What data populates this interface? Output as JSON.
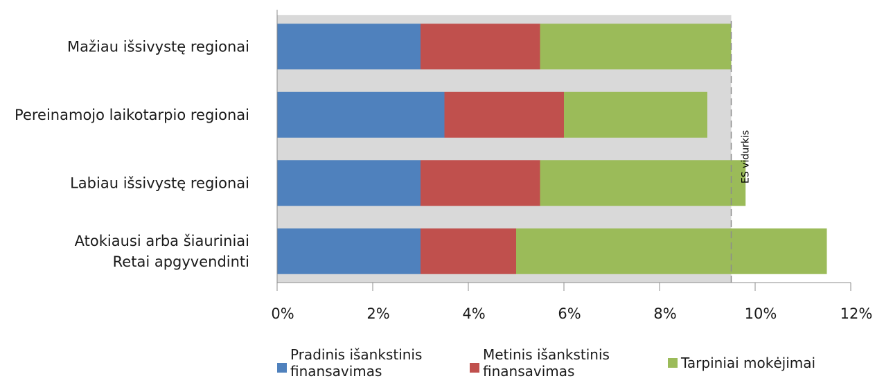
{
  "chart_data": {
    "type": "bar",
    "orientation": "horizontal",
    "stacked": true,
    "categories": [
      [
        "Mažiau išsivystę regionai"
      ],
      [
        "Pereinamojo laikotarpio regionai"
      ],
      [
        "Labiau išsivystę regionai"
      ],
      [
        "Atokiausi arba šiauriniai",
        "Retai apgyvendinti"
      ]
    ],
    "series": [
      {
        "name": "Pradinis išankstinis finansavimas",
        "color": "#4f81bd",
        "values": [
          3.0,
          3.5,
          3.0,
          3.0
        ]
      },
      {
        "name": "Metinis išankstinis finansavimas",
        "color": "#c0504d",
        "values": [
          2.5,
          2.5,
          2.5,
          2.0
        ]
      },
      {
        "name": "Tarpiniai mokėjimai",
        "color": "#9bbb59",
        "values": [
          4.0,
          3.0,
          4.3,
          6.5
        ]
      }
    ],
    "xlim": [
      0,
      12
    ],
    "x_ticks": [
      "0%",
      "2%",
      "4%",
      "6%",
      "8%",
      "10%",
      "12%"
    ],
    "reference_line": {
      "label": "ES vidurkis",
      "value": 9.5
    },
    "band_color": "#d9d9d9",
    "legend_position": "bottom"
  },
  "legend": [
    {
      "text": "Pradinis išankstinis\nfinansavimas",
      "color": "#4f81bd"
    },
    {
      "text": "Metinis išankstinis\nfinansavimas",
      "color": "#c0504d"
    },
    {
      "text": "Tarpiniai mokėjimai",
      "color": "#9bbb59"
    }
  ]
}
